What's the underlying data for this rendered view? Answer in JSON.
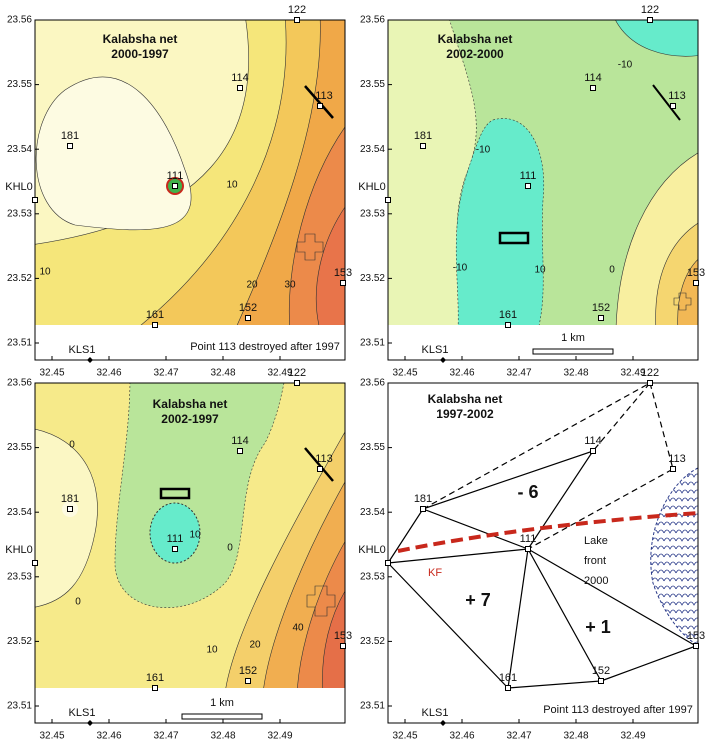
{
  "x_ticks": [
    "32.45",
    "32.46",
    "32.47",
    "32.48",
    "32.49"
  ],
  "y_ticks": [
    "23.56",
    "23.55",
    "23.54",
    "23.53",
    "23.52",
    "23.51"
  ],
  "panels": [
    {
      "title": "Kalabsha net",
      "period": "2000-1997",
      "stations": [
        "122",
        "114",
        "113",
        "181",
        "111",
        "KHL0",
        "161",
        "152",
        "153",
        "KLS1"
      ],
      "contour_labels": [
        "10",
        "10",
        "20",
        "30"
      ],
      "note": "Point 113 destroyed after 1997"
    },
    {
      "title": "Kalabsha net",
      "period": "2002-2000",
      "stations": [
        "122",
        "114",
        "113",
        "181",
        "111",
        "KHL0",
        "161",
        "152",
        "153",
        "KLS1"
      ],
      "contour_labels": [
        "-10",
        "-10",
        "10",
        "-10",
        "0"
      ],
      "scale_bar": "1 km"
    },
    {
      "title": "Kalabsha net",
      "period": "2002-1997",
      "stations": [
        "122",
        "114",
        "113",
        "181",
        "111",
        "KHL0",
        "161",
        "152",
        "153",
        "KLS1"
      ],
      "contour_labels": [
        "0",
        "0",
        "0",
        "10",
        "10",
        "20",
        "40"
      ],
      "scale_bar": "1 km"
    },
    {
      "title": "Kalabsha net",
      "period": "1997-2002",
      "stations": [
        "122",
        "114",
        "113",
        "181",
        "111",
        "KHL0",
        "161",
        "152",
        "153",
        "KLS1"
      ],
      "zone_labels": [
        "- 6",
        "+ 7",
        "+ 1"
      ],
      "lake_label": [
        "Lake",
        "front",
        "2000"
      ],
      "fault": "KF",
      "note": "Point 113 destroyed after 1997"
    }
  ]
}
